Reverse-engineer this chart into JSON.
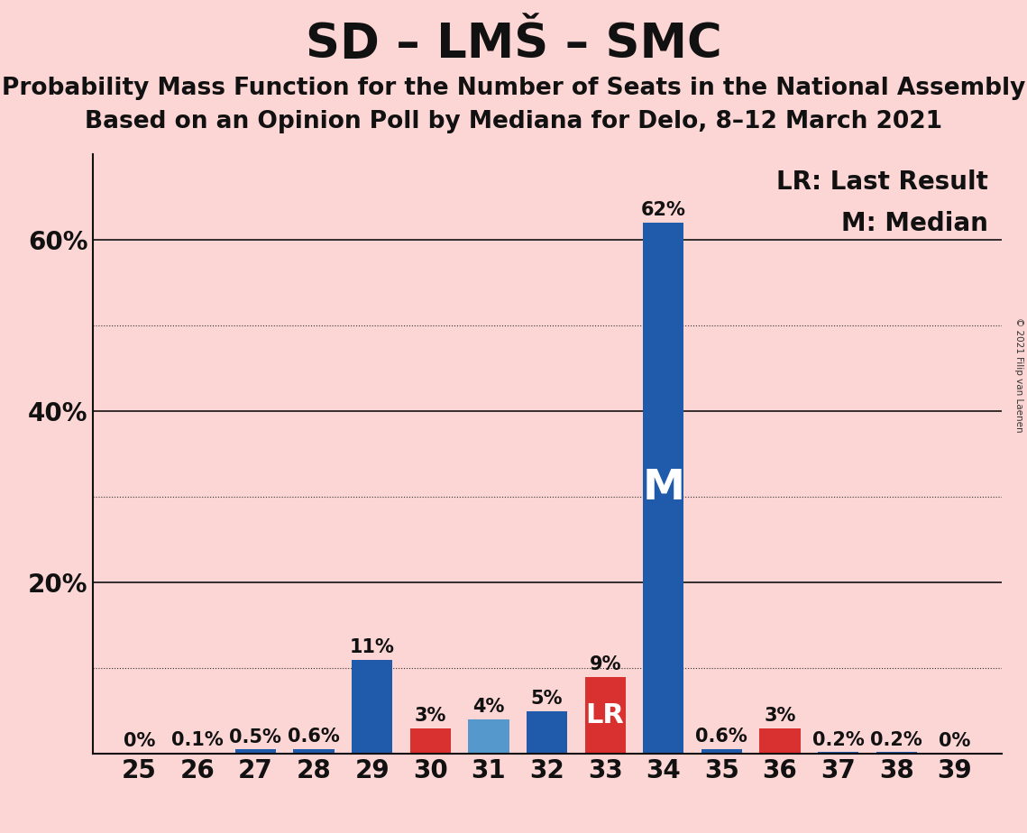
{
  "title": "SD – LMŠ – SMC",
  "subtitle1": "Probability Mass Function for the Number of Seats in the National Assembly",
  "subtitle2": "Based on an Opinion Poll by Mediana for Delo, 8–12 March 2021",
  "copyright": "© 2021 Filip van Laenen",
  "seats": [
    25,
    26,
    27,
    28,
    29,
    30,
    31,
    32,
    33,
    34,
    35,
    36,
    37,
    38,
    39
  ],
  "bar_colors": [
    "none",
    "red",
    "blue",
    "blue",
    "blue",
    "red",
    "lightblue",
    "blue",
    "red",
    "blue",
    "blue",
    "red",
    "blue",
    "blue",
    "none"
  ],
  "bar_values": [
    0.0,
    0.1,
    0.5,
    0.6,
    11.0,
    3.0,
    4.0,
    5.0,
    9.0,
    62.0,
    0.6,
    3.0,
    0.2,
    0.2,
    0.0
  ],
  "bar_labels": [
    "0%",
    "0.1%",
    "0.5%",
    "0.6%",
    "11%",
    "3%",
    "4%",
    "5%",
    "9%",
    "62%",
    "0.6%",
    "3%",
    "0.2%",
    "0.2%",
    "0%"
  ],
  "pmf_color": "#1f5aab",
  "pmf_light_color": "#5599cc",
  "lr_color": "#d93030",
  "median_seat": 34,
  "lr_seat": 33,
  "background_color": "#fcd5d5",
  "ylim_max": 70,
  "solid_yticks": [
    20,
    40,
    60
  ],
  "solid_ytick_labels": [
    "20%",
    "40%",
    "60%"
  ],
  "dotted_yticks": [
    10,
    30,
    50
  ],
  "legend_lr": "LR: Last Result",
  "legend_m": "M: Median",
  "bar_width": 0.7,
  "title_fontsize": 38,
  "subtitle_fontsize": 19,
  "tick_fontsize": 20,
  "label_fontsize": 15,
  "legend_fontsize": 20
}
